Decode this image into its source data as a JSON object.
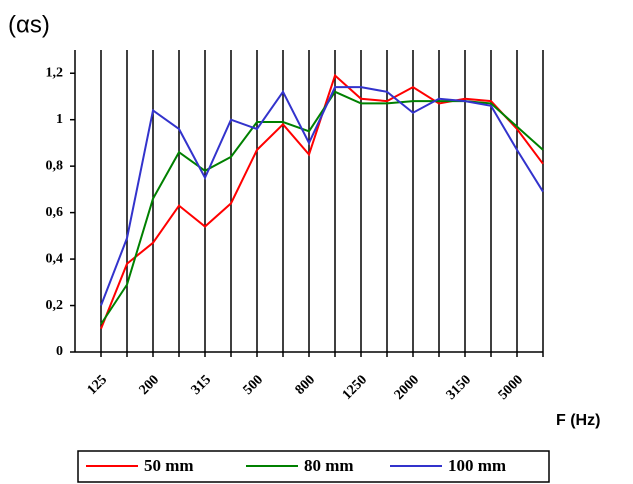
{
  "chart_data": {
    "type": "line",
    "y_label": "(αs)",
    "x_label": "F (Hz)",
    "categories": [
      "125",
      null,
      "200",
      null,
      "315",
      null,
      "500",
      null,
      "800",
      null,
      "1250",
      null,
      "2000",
      null,
      "3150",
      null,
      "5000",
      null
    ],
    "series": [
      {
        "name": "50 mm",
        "color": "#ff0000",
        "values": [
          0.1,
          0.38,
          0.47,
          0.63,
          0.54,
          0.64,
          0.87,
          0.98,
          0.85,
          1.19,
          1.09,
          1.08,
          1.14,
          1.07,
          1.09,
          1.08,
          0.96,
          0.81
        ]
      },
      {
        "name": "80 mm",
        "color": "#008000",
        "values": [
          0.12,
          0.29,
          0.66,
          0.86,
          0.78,
          0.84,
          0.99,
          0.99,
          0.95,
          1.12,
          1.07,
          1.07,
          1.08,
          1.08,
          1.08,
          1.07,
          0.97,
          0.87
        ]
      },
      {
        "name": "100 mm",
        "color": "#3333cc",
        "values": [
          0.2,
          0.49,
          1.04,
          0.96,
          0.75,
          1.0,
          0.96,
          1.12,
          0.9,
          1.14,
          1.14,
          1.12,
          1.03,
          1.09,
          1.08,
          1.06,
          0.87,
          0.69
        ]
      }
    ],
    "ylim": [
      0,
      1.3
    ],
    "yticks": [
      0,
      {
        "value": 0.2,
        "label": "0,2"
      },
      {
        "value": 0.4,
        "label": "0,4"
      },
      {
        "value": 0.6,
        "label": "0,6"
      },
      {
        "value": 0.8,
        "label": "0,8"
      },
      1,
      {
        "value": 1.2,
        "label": "1,2"
      }
    ],
    "grid": "vertical",
    "legend": "bottom"
  }
}
